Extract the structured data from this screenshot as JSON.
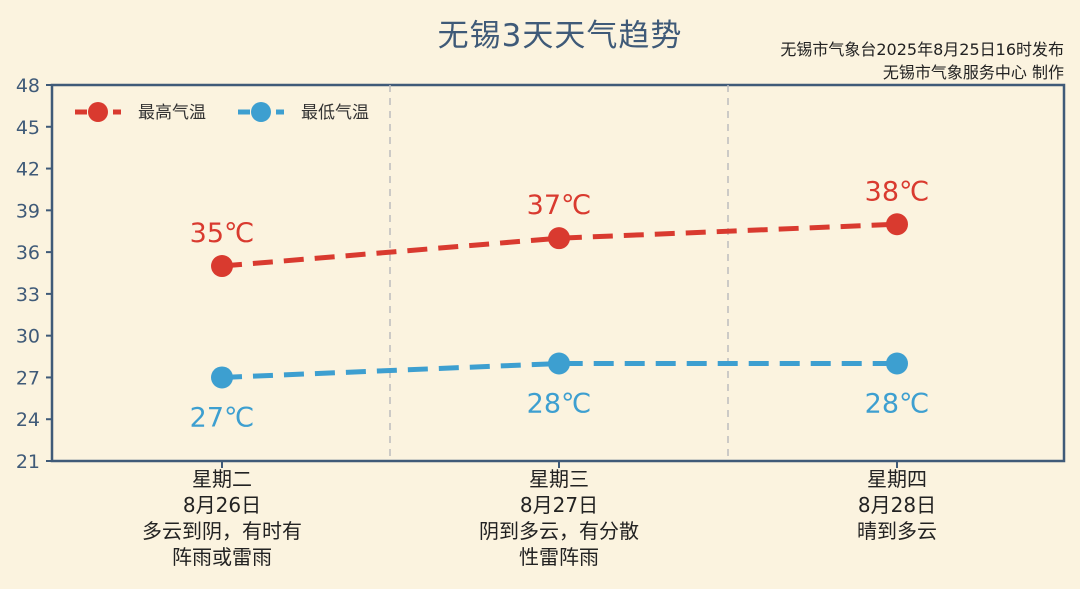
{
  "title": "无锡3天天气趋势",
  "issuer": {
    "line1": "无锡市气象台2025年8月25日16时发布",
    "line2": "无锡市气象服务中心  制作"
  },
  "colors": {
    "background": "#fbf3df",
    "axis": "#3f5a78",
    "high": "#d93a2f",
    "low": "#3d9fd0",
    "divider": "#bdbdbd"
  },
  "chart_data": {
    "type": "line",
    "ylim": [
      21,
      48
    ],
    "yticks": [
      21,
      24,
      27,
      30,
      33,
      36,
      39,
      42,
      45,
      48
    ],
    "legend_position": "top-left",
    "categories": [
      {
        "weekday": "星期二",
        "date": "8月26日",
        "weather": [
          "多云到阴，有时有",
          "阵雨或雷雨"
        ]
      },
      {
        "weekday": "星期三",
        "date": "8月27日",
        "weather": [
          "阴到多云，有分散",
          "性雷阵雨"
        ]
      },
      {
        "weekday": "星期四",
        "date": "8月28日",
        "weather": [
          "晴到多云"
        ]
      }
    ],
    "series": [
      {
        "name": "最高气温",
        "values": [
          35,
          37,
          38
        ],
        "labels": [
          "35℃",
          "37℃",
          "38℃"
        ],
        "color": "#d93a2f"
      },
      {
        "name": "最低气温",
        "values": [
          27,
          28,
          28
        ],
        "labels": [
          "27℃",
          "28℃",
          "28℃"
        ],
        "color": "#3d9fd0"
      }
    ]
  }
}
